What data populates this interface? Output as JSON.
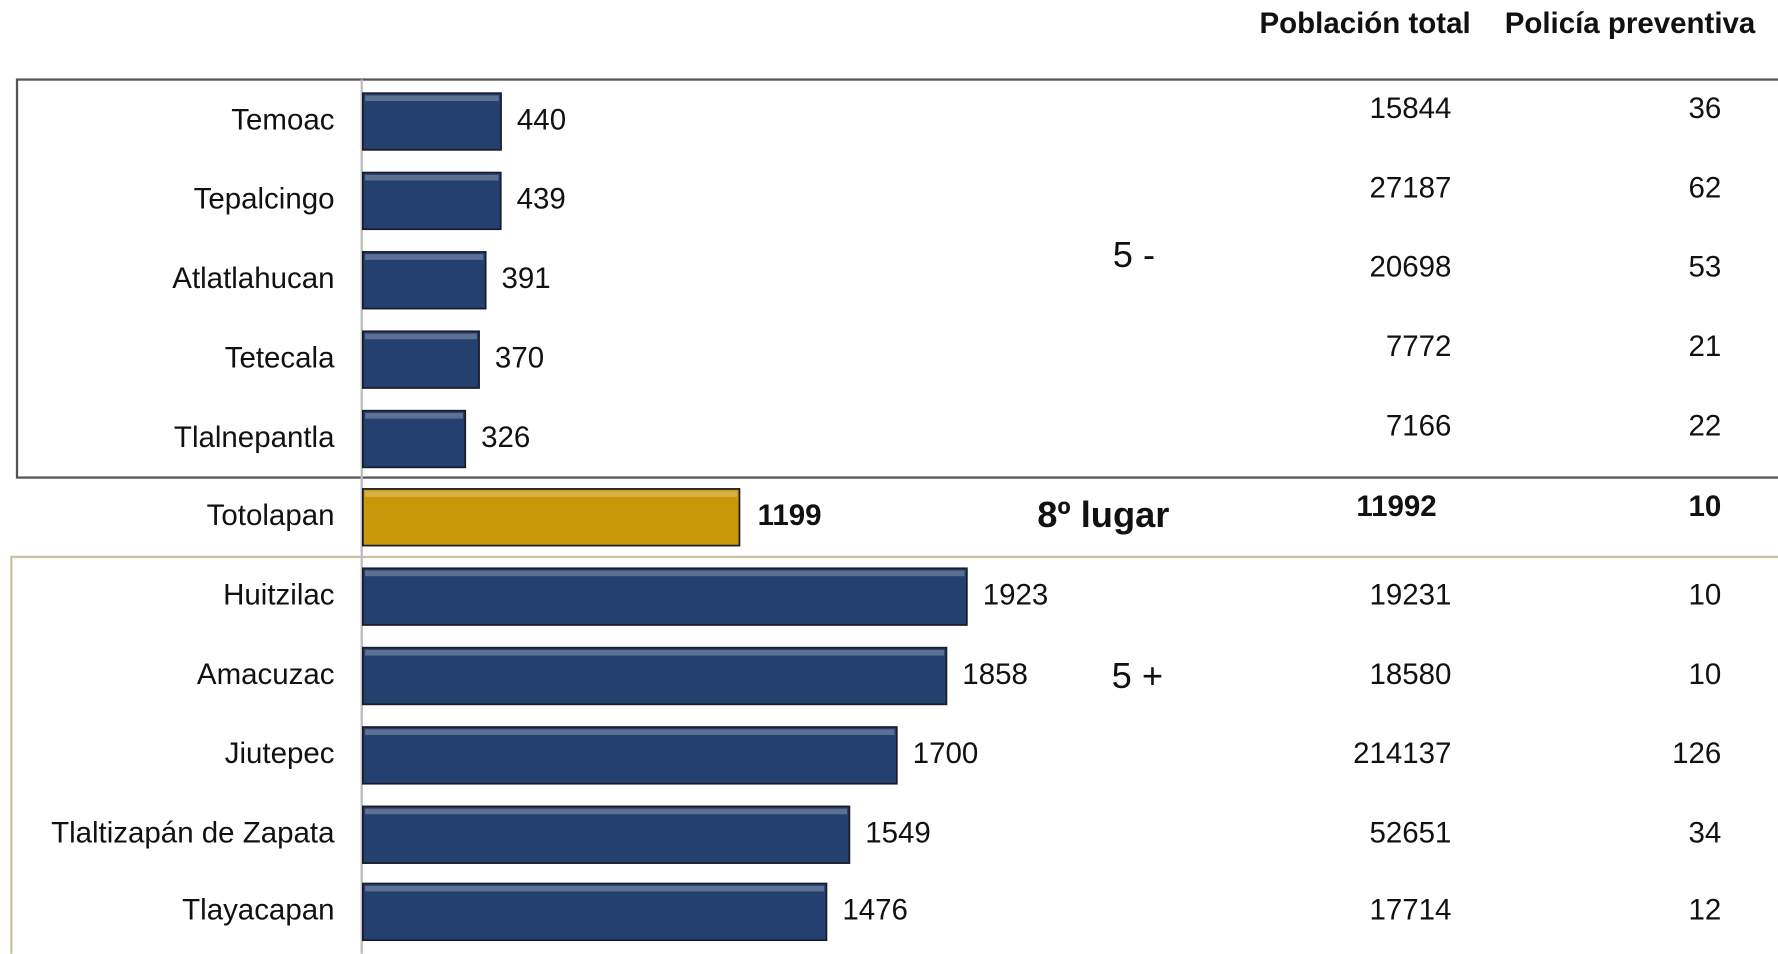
{
  "chart_data": {
    "type": "hbar",
    "categories": [
      "Temoac",
      "Tepalcingo",
      "Atlatlahucan",
      "Tetecala",
      "Tlalnepantla",
      "Totolapan",
      "Huitzilac",
      "Amacuzac",
      "Jiutepec",
      "Tlaltizapán de Zapata",
      "Tlayacapan"
    ],
    "values": [
      440,
      439,
      391,
      370,
      326,
      1199,
      1923,
      1858,
      1700,
      1549,
      1476
    ],
    "color": "#24406f",
    "highlight": 5,
    "highlight_color": "#c9980a",
    "xlim": [
      0,
      2000
    ],
    "group_labels": [
      "5 -",
      "8º lugar",
      "5 +"
    ],
    "columns": [
      {
        "header": "Población total",
        "values": [
          15844,
          27187,
          20698,
          7772,
          7166,
          11992,
          19231,
          18580,
          214137,
          52651,
          17714
        ]
      },
      {
        "header": "Policía preventiva",
        "values": [
          36,
          62,
          53,
          21,
          22,
          10,
          10,
          10,
          126,
          34,
          12
        ]
      }
    ]
  }
}
